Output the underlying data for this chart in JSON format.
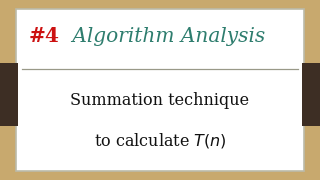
{
  "bg_outer": "#c8a96e",
  "bg_inner": "#ffffff",
  "border_color": "#bbbbaa",
  "side_panel_color": "#3d2e24",
  "hash4_text": "#4",
  "hash4_color": "#cc1111",
  "title_text": " Algorithm Analysis",
  "title_color": "#2e7d6e",
  "body_line1": "Summation technique",
  "body_line2": "to calculate $\\mathit{T}(n)$",
  "body_color": "#111111",
  "title_fontsize": 14.5,
  "body_fontsize": 11.5
}
